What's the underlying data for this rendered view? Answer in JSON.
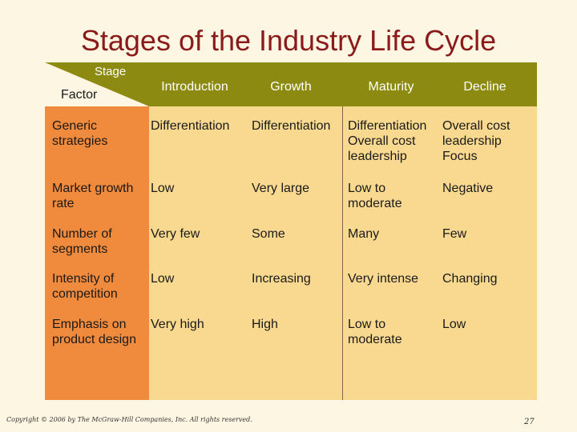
{
  "title": "Stages of the Industry Life Cycle",
  "corner": {
    "stage": "Stage",
    "factor": "Factor"
  },
  "columns": [
    "Introduction",
    "Growth",
    "Maturity",
    "Decline"
  ],
  "rows": [
    {
      "label": "Generic strategies",
      "cells": [
        "Differentiation",
        "Differentiation",
        "Differentiation\nOverall cost\nleadership",
        "Overall cost\nleadership\nFocus"
      ]
    },
    {
      "label": "Market growth rate",
      "cells": [
        "Low",
        "Very large",
        "Low to\nmoderate",
        "Negative"
      ]
    },
    {
      "label": "Number of segments",
      "cells": [
        "Very few",
        "Some",
        "Many",
        "Few"
      ]
    },
    {
      "label": "Intensity of competition",
      "cells": [
        "Low",
        "Increasing",
        "Very intense",
        "Changing"
      ]
    },
    {
      "label": "Emphasis on product design",
      "cells": [
        "Very high",
        "High",
        "Low to\nmoderate",
        "Low"
      ]
    }
  ],
  "footer": {
    "copyright": "Copyright © 2006 by The McGraw-Hill Companies, Inc. All rights reserved.",
    "page": "27"
  },
  "colors": {
    "header": "#8c8a10",
    "factor_column": "#f08a3c",
    "body": "#f9d98f",
    "title": "#8b1a1a"
  }
}
